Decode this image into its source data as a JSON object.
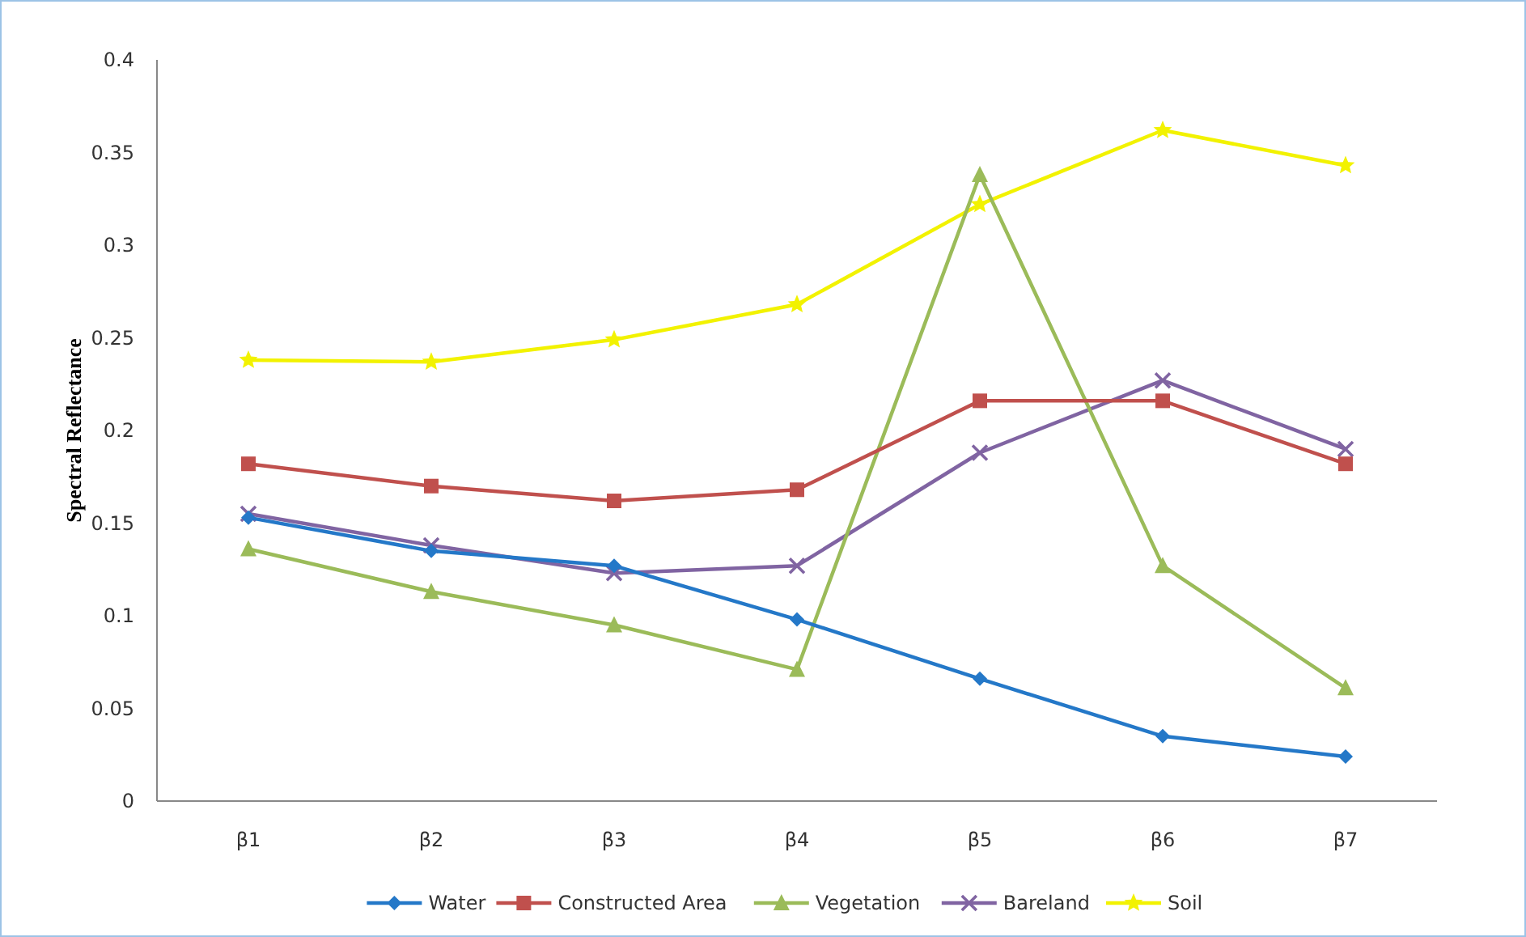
{
  "chart_data": {
    "type": "line",
    "ylabel": "Spectral Reflectance",
    "categories": [
      "β1",
      "β2",
      "β3",
      "β4",
      "β5",
      "β6",
      "β7"
    ],
    "ylim": [
      0,
      0.4
    ],
    "yticks": [
      0,
      0.05,
      0.1,
      0.15,
      0.2,
      0.25,
      0.3,
      0.35,
      0.4
    ],
    "grid": false,
    "legend": "bottom",
    "line_style": "solid",
    "series": [
      {
        "name": "Water",
        "color": "#2478c8",
        "marker": "diamond",
        "values": [
          0.153,
          0.135,
          0.127,
          0.098,
          0.066,
          0.035,
          0.024
        ]
      },
      {
        "name": "Constructed Area",
        "color": "#c0504d",
        "marker": "square",
        "values": [
          0.182,
          0.17,
          0.162,
          0.168,
          0.216,
          0.216,
          0.182
        ]
      },
      {
        "name": "Vegetation",
        "color": "#9bbb59",
        "marker": "triangle",
        "values": [
          0.136,
          0.113,
          0.095,
          0.071,
          0.338,
          0.127,
          0.061
        ]
      },
      {
        "name": "Bareland",
        "color": "#8064a2",
        "marker": "cross",
        "values": [
          0.155,
          0.138,
          0.123,
          0.127,
          0.188,
          0.227,
          0.19
        ]
      },
      {
        "name": "Soil",
        "color": "#f2f200",
        "marker": "star",
        "values": [
          0.238,
          0.237,
          0.249,
          0.268,
          0.322,
          0.362,
          0.343
        ]
      }
    ]
  }
}
